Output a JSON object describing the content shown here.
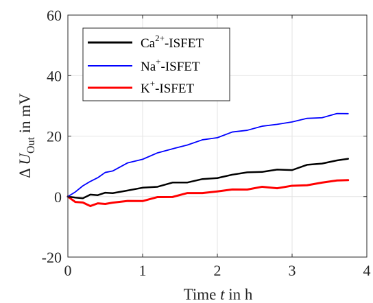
{
  "chart_data": {
    "type": "line",
    "xlabel_parts": [
      "Time ",
      "t",
      " in h"
    ],
    "ylabel_parts": [
      "Δ ",
      "U",
      "Out",
      " in mV"
    ],
    "xlim": [
      0,
      4
    ],
    "ylim": [
      -20,
      60
    ],
    "x_ticks": [
      "0",
      "1",
      "2",
      "3",
      "4"
    ],
    "y_ticks": [
      "-20",
      "0",
      "20",
      "40",
      "60"
    ],
    "grid": true,
    "legend_position": "top-left",
    "series": [
      {
        "name": "Ca2+-ISFET",
        "legend_parts": [
          "Ca",
          "2+",
          "-ISFET"
        ],
        "color": "#000000",
        "x": [
          0,
          0.1,
          0.2,
          0.3,
          0.4,
          0.5,
          0.6,
          0.8,
          1.0,
          1.2,
          1.4,
          1.6,
          1.8,
          2.0,
          2.2,
          2.4,
          2.6,
          2.8,
          3.0,
          3.2,
          3.4,
          3.6,
          3.75
        ],
        "y": [
          0,
          -0.5,
          -0.3,
          0.3,
          0.8,
          1.0,
          1.3,
          2.0,
          2.8,
          3.5,
          4.3,
          5.0,
          5.5,
          6.3,
          7.2,
          7.9,
          8.4,
          8.6,
          9.1,
          10.2,
          11.1,
          11.9,
          12.4
        ]
      },
      {
        "name": "Na+-ISFET",
        "legend_parts": [
          "Na",
          "+",
          "-ISFET"
        ],
        "color": "#0000ff",
        "x": [
          0,
          0.1,
          0.2,
          0.3,
          0.4,
          0.5,
          0.6,
          0.8,
          1.0,
          1.2,
          1.4,
          1.6,
          1.8,
          2.0,
          2.2,
          2.4,
          2.6,
          2.8,
          3.0,
          3.2,
          3.4,
          3.6,
          3.75
        ],
        "y": [
          0,
          1.8,
          3.4,
          5.0,
          6.4,
          7.7,
          8.8,
          10.8,
          12.6,
          14.3,
          15.8,
          17.2,
          18.5,
          19.8,
          21.0,
          22.2,
          23.1,
          23.9,
          24.8,
          25.6,
          26.4,
          27.1,
          27.7
        ]
      },
      {
        "name": "K+-ISFET",
        "legend_parts": [
          "K",
          "+",
          "-ISFET"
        ],
        "color": "#ff0000",
        "x": [
          0,
          0.1,
          0.2,
          0.3,
          0.4,
          0.5,
          0.6,
          0.8,
          1.0,
          1.2,
          1.4,
          1.6,
          1.8,
          2.0,
          2.2,
          2.4,
          2.6,
          2.8,
          3.0,
          3.2,
          3.4,
          3.6,
          3.75
        ],
        "y": [
          0,
          -1.5,
          -2.3,
          -2.8,
          -2.5,
          -2.3,
          -2.0,
          -1.6,
          -1.2,
          -0.5,
          0.2,
          0.9,
          1.3,
          1.7,
          2.2,
          2.6,
          2.9,
          3.1,
          3.3,
          3.9,
          4.6,
          5.2,
          5.7
        ]
      }
    ]
  }
}
